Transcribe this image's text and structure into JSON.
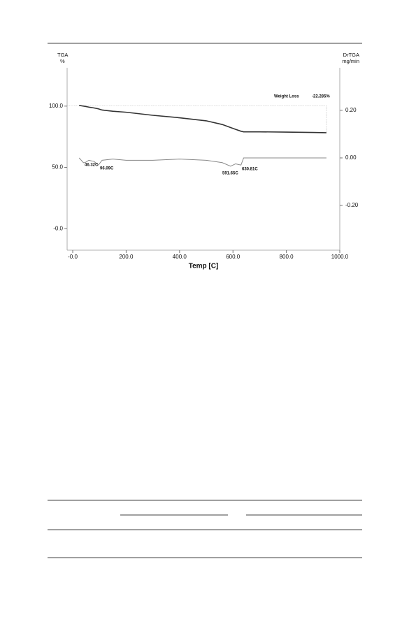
{
  "chart_data": {
    "type": "line",
    "y_label_top": "TGA",
    "y_label_unit": "%",
    "y2_label_top": "DrTGA",
    "y2_label_unit": "mg/min",
    "x_label": "Temp  [C]",
    "x": [
      24,
      40,
      46,
      60,
      80,
      96,
      110,
      150,
      200,
      300,
      400,
      500,
      560,
      591,
      610,
      630,
      640,
      700,
      800,
      900,
      950
    ],
    "series": [
      {
        "name": "TGA",
        "color": "#333333",
        "axis": "y",
        "values": [
          100.6,
          100,
          99.8,
          99.2,
          98.5,
          97.8,
          96.8,
          95.8,
          95,
          92.5,
          90.5,
          88,
          85,
          82.5,
          81,
          79.5,
          79,
          79,
          78.8,
          78.5,
          78.3
        ]
      },
      {
        "name": "DrTGA",
        "color": "#888888",
        "axis": "y2",
        "values": [
          0,
          -0.02,
          -0.02,
          -0.01,
          -0.015,
          -0.03,
          -0.01,
          -0.005,
          -0.01,
          -0.01,
          -0.005,
          -0.01,
          -0.02,
          -0.035,
          -0.025,
          -0.03,
          0,
          0,
          0,
          0,
          0
        ]
      }
    ],
    "xlim": [
      -21,
      1000
    ],
    "xticks": [
      {
        "value": 0,
        "label": "-0.0"
      },
      {
        "value": 200,
        "label": "200.0"
      },
      {
        "value": 400,
        "label": "400.0"
      },
      {
        "value": 600,
        "label": "600.0"
      },
      {
        "value": 800,
        "label": "800.0"
      },
      {
        "value": 1000,
        "label": "1000.0"
      }
    ],
    "ylim": [
      -17.6,
      131.3
    ],
    "yticks": [
      {
        "value": 0,
        "label": "-0.0"
      },
      {
        "value": 50,
        "label": "50.0"
      },
      {
        "value": 100,
        "label": "100.0"
      }
    ],
    "y2lim": [
      -0.388,
      0.379
    ],
    "y2ticks": [
      {
        "value": -0.2,
        "label": "-0.20"
      },
      {
        "value": 0,
        "label": "0.00"
      },
      {
        "value": 0.2,
        "label": "0.20"
      }
    ],
    "annotations": [
      "46.32C",
      "96.09C",
      "591.65C",
      "630.81C"
    ],
    "weight_loss": {
      "label": "Weight Loss",
      "value": -22.285,
      "value_label": "-22.285%"
    }
  }
}
